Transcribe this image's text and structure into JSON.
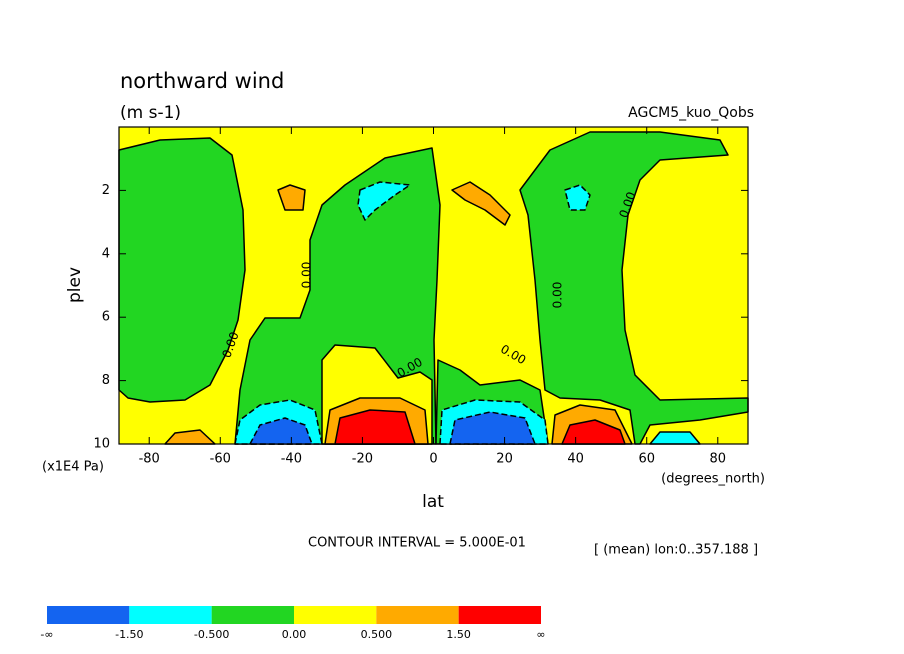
{
  "chart_data": {
    "type": "contour",
    "title": "northward wind",
    "subtitle": "(m s-1)",
    "dataset": "AGCM5_kuo_Qobs",
    "y_label": "plev",
    "y_unit": "(x1E4 Pa)",
    "x_label": "lat",
    "x_unit": "(degrees_north)",
    "contour_interval": "CONTOUR INTERVAL = 5.000E-01",
    "annotation": "[ (mean) lon:0..357.188 ]",
    "xlim": [
      -88.5,
      88.5
    ],
    "xticks": [
      -80,
      -60,
      -40,
      -20,
      0,
      20,
      40,
      60,
      80
    ],
    "ylim": [
      10,
      0
    ],
    "yticks": [
      2,
      4,
      6,
      8,
      10
    ],
    "contour_labels": [
      "0.00",
      "0.00",
      "0.00",
      "0.00",
      "0.00",
      "0.00"
    ],
    "colorbar": {
      "labels": [
        "-∞",
        "-1.50",
        "-0.500",
        "0.00",
        "0.500",
        "1.50",
        "∞"
      ],
      "colors": [
        "#1464f0",
        "#00ffff",
        "#22d622",
        "#ffff00",
        "#ffaa00",
        "#ff0000"
      ]
    }
  }
}
